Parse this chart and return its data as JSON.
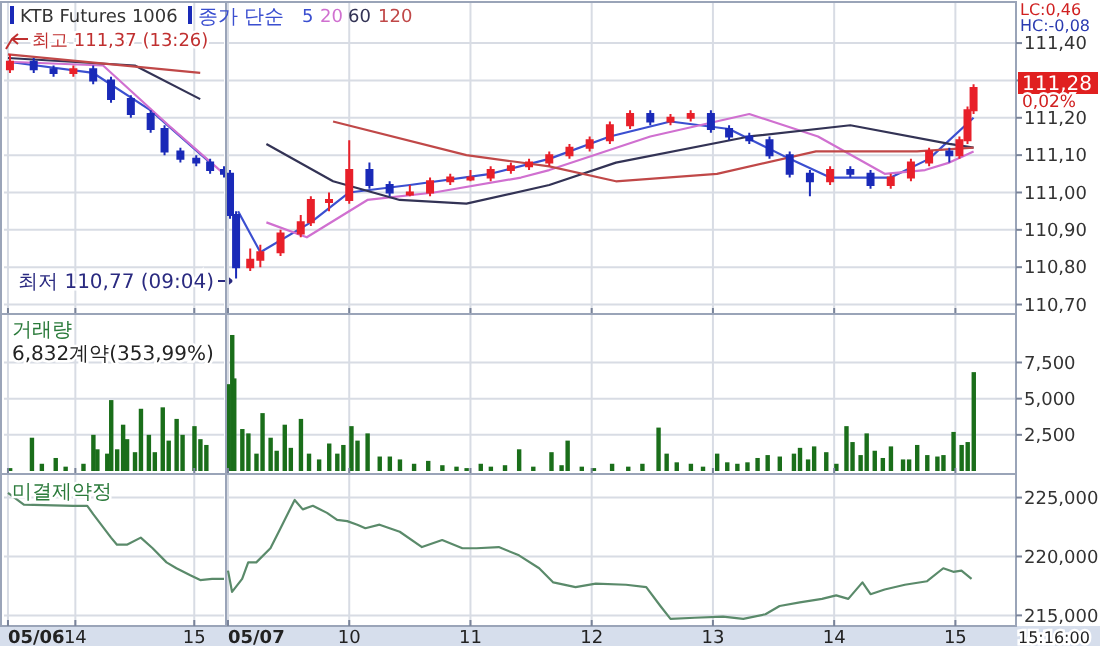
{
  "chart_data": [
    {
      "type": "candlestick",
      "title": "KTB Futures 1006",
      "grid": true,
      "tick_labels": false,
      "xlim": [
        "--05-06T13:24",
        "--05-06T15:15"
      ],
      "xticks": [
        {
          "value": "--05-06T13:26",
          "label": null
        },
        {
          "value": "--05-06T14:00",
          "label": null
        },
        {
          "value": "--05-06T15:00",
          "label": null
        }
      ],
      "ylim": [
        110.68,
        111.51
      ],
      "yticks": [
        110.7,
        110.8,
        110.9,
        111,
        111.1,
        111.2,
        111.3,
        111.4
      ],
      "x": [
        "--05-06T13:27",
        "--05-06T13:39",
        "--05-06T13:49",
        "--05-06T13:59",
        "--05-06T14:09",
        "--05-06T14:18",
        "--05-06T14:28",
        "--05-06T14:38",
        "--05-06T14:45",
        "--05-06T14:53",
        "--05-06T15:01",
        "--05-06T15:08",
        "--05-06T15:15"
      ],
      "ohlc": [
        [
          111.33,
          111.37,
          111.32,
          111.35
        ],
        [
          111.35,
          111.36,
          111.32,
          111.33
        ],
        [
          111.33,
          111.34,
          111.31,
          111.32
        ],
        [
          111.32,
          111.34,
          111.31,
          111.33
        ],
        [
          111.33,
          111.34,
          111.29,
          111.3
        ],
        [
          111.3,
          111.31,
          111.24,
          111.25
        ],
        [
          111.25,
          111.26,
          111.2,
          111.21
        ],
        [
          111.21,
          111.22,
          111.16,
          111.17
        ],
        [
          111.17,
          111.18,
          111.1,
          111.11
        ],
        [
          111.11,
          111.12,
          111.08,
          111.09
        ],
        [
          111.09,
          111.1,
          111.07,
          111.08
        ],
        [
          111.08,
          111.09,
          111.05,
          111.06
        ],
        [
          111.06,
          111.07,
          111.04,
          111.05
        ]
      ],
      "series": [
        {
          "type": "line",
          "color": "#3b4fd0",
          "x": [
            "--05-06T13:26",
            "--05-06T14:09",
            "--05-06T14:38",
            "--05-06T15:08"
          ],
          "values": [
            111.35,
            111.32,
            111.22,
            111.08
          ]
        },
        {
          "type": "line",
          "color": "#d070d0",
          "x": [
            "--05-06T13:26",
            "--05-06T14:14",
            "--05-06T14:47",
            "--05-06T15:15"
          ],
          "values": [
            111.35,
            111.34,
            111.18,
            111.05
          ]
        },
        {
          "type": "line",
          "color": "#333355",
          "x": [
            "--05-06T13:26",
            "--05-06T14:30",
            "--05-06T15:03"
          ],
          "values": [
            111.36,
            111.34,
            111.25
          ]
        },
        {
          "type": "line",
          "color": "#c04848",
          "x": [
            "--05-06T13:26",
            "--05-06T15:03"
          ],
          "values": [
            111.37,
            111.32
          ]
        }
      ],
      "annotations": [
        "최고 111,37 (13:26)",
        "최저 110,77 (09:04)"
      ]
    },
    {
      "type": "candlestick",
      "legend_title": "종가 단순",
      "legend": "top left",
      "grid": true,
      "tick_labels": "y",
      "xlim": [
        "--05-07T09:00",
        "--05-07T15:30"
      ],
      "xticks": [
        {
          "value": "--05-07T09:00",
          "label": null
        },
        {
          "value": "--05-07T10:00",
          "label": null
        },
        {
          "value": "--05-07T11:00",
          "label": null
        },
        {
          "value": "--05-07T12:00",
          "label": null
        },
        {
          "value": "--05-07T13:00",
          "label": null
        },
        {
          "value": "--05-07T14:00",
          "label": null
        },
        {
          "value": "--05-07T15:00",
          "label": null
        }
      ],
      "ylim": [
        110.68,
        111.51
      ],
      "yticks": [
        {
          "value": 110.7,
          "label": "110,70"
        },
        {
          "value": 110.8,
          "label": "110,80"
        },
        {
          "value": 110.9,
          "label": "110,90"
        },
        {
          "value": 111,
          "label": "111,00"
        },
        {
          "value": 111.1,
          "label": "111,10"
        },
        {
          "value": 111.2,
          "label": "111,20"
        },
        {
          "value": 111.3,
          "label": null
        },
        {
          "value": 111.4,
          "label": "111,40"
        }
      ],
      "x": [
        "--05-07T09:01",
        "--05-07T09:04",
        "--05-07T09:11",
        "--05-07T09:16",
        "--05-07T09:26",
        "--05-07T09:36",
        "--05-07T09:41",
        "--05-07T09:50",
        "--05-07T10:00",
        "--05-07T10:10",
        "--05-07T10:20",
        "--05-07T10:30",
        "--05-07T10:40",
        "--05-07T10:50",
        "--05-07T11:00",
        "--05-07T11:10",
        "--05-07T11:20",
        "--05-07T11:29",
        "--05-07T11:39",
        "--05-07T11:49",
        "--05-07T11:59",
        "--05-07T12:09",
        "--05-07T12:19",
        "--05-07T12:29",
        "--05-07T12:39",
        "--05-07T12:49",
        "--05-07T12:59",
        "--05-07T13:08",
        "--05-07T13:18",
        "--05-07T13:28",
        "--05-07T13:38",
        "--05-07T13:48",
        "--05-07T13:58",
        "--05-07T14:08",
        "--05-07T14:18",
        "--05-07T14:28",
        "--05-07T14:38",
        "--05-07T14:47",
        "--05-07T14:57",
        "--05-07T15:02",
        "--05-07T15:06",
        "--05-07T15:09"
      ],
      "ohlc": [
        [
          111.05,
          111.06,
          110.93,
          110.94
        ],
        [
          110.94,
          110.95,
          110.77,
          110.8
        ],
        [
          110.8,
          110.85,
          110.79,
          110.82
        ],
        [
          110.82,
          110.86,
          110.8,
          110.84
        ],
        [
          110.84,
          110.9,
          110.83,
          110.89
        ],
        [
          110.89,
          110.94,
          110.88,
          110.92
        ],
        [
          110.92,
          110.99,
          110.91,
          110.98
        ],
        [
          110.98,
          111.0,
          110.95,
          110.98
        ],
        [
          110.98,
          111.14,
          110.97,
          111.06
        ],
        [
          111.06,
          111.08,
          111.01,
          111.02
        ],
        [
          111.02,
          111.03,
          110.99,
          111.0
        ],
        [
          111.0,
          111.02,
          110.99,
          111.0
        ],
        [
          111.0,
          111.04,
          110.99,
          111.03
        ],
        [
          111.03,
          111.05,
          111.02,
          111.04
        ],
        [
          111.04,
          111.06,
          111.03,
          111.04
        ],
        [
          111.04,
          111.07,
          111.03,
          111.06
        ],
        [
          111.06,
          111.08,
          111.05,
          111.07
        ],
        [
          111.07,
          111.09,
          111.06,
          111.08
        ],
        [
          111.08,
          111.11,
          111.07,
          111.1
        ],
        [
          111.1,
          111.13,
          111.09,
          111.12
        ],
        [
          111.12,
          111.15,
          111.11,
          111.14
        ],
        [
          111.14,
          111.19,
          111.13,
          111.18
        ],
        [
          111.18,
          111.22,
          111.17,
          111.21
        ],
        [
          111.21,
          111.22,
          111.18,
          111.19
        ],
        [
          111.19,
          111.21,
          111.18,
          111.2
        ],
        [
          111.2,
          111.22,
          111.19,
          111.21
        ],
        [
          111.21,
          111.22,
          111.16,
          111.17
        ],
        [
          111.17,
          111.18,
          111.14,
          111.15
        ],
        [
          111.15,
          111.16,
          111.13,
          111.14
        ],
        [
          111.14,
          111.15,
          111.09,
          111.1
        ],
        [
          111.1,
          111.11,
          111.04,
          111.05
        ],
        [
          111.05,
          111.06,
          110.99,
          111.03
        ],
        [
          111.03,
          111.07,
          111.02,
          111.06
        ],
        [
          111.06,
          111.07,
          111.04,
          111.05
        ],
        [
          111.05,
          111.06,
          111.01,
          111.02
        ],
        [
          111.02,
          111.05,
          111.01,
          111.04
        ],
        [
          111.04,
          111.09,
          111.03,
          111.08
        ],
        [
          111.08,
          111.12,
          111.07,
          111.11
        ],
        [
          111.11,
          111.12,
          111.08,
          111.1
        ],
        [
          111.1,
          111.15,
          111.09,
          111.14
        ],
        [
          111.14,
          111.23,
          111.13,
          111.22
        ],
        [
          111.22,
          111.29,
          111.21,
          111.28
        ]
      ],
      "series": [
        {
          "type": "line",
          "name": "5",
          "color": "#3b4fd0",
          "x": [
            "--05-07T09:05",
            "--05-07T09:16",
            "--05-07T09:41",
            "--05-07T10:00",
            "--05-07T10:30",
            "--05-07T11:10",
            "--05-07T11:39",
            "--05-07T12:09",
            "--05-07T12:39",
            "--05-07T13:08",
            "--05-07T13:38",
            "--05-07T13:58",
            "--05-07T14:28",
            "--05-07T14:47",
            "--05-07T15:09"
          ],
          "values": [
            110.95,
            110.84,
            110.92,
            111.0,
            111.02,
            111.05,
            111.09,
            111.15,
            111.19,
            111.17,
            111.09,
            111.04,
            111.04,
            111.09,
            111.2
          ]
        },
        {
          "type": "line",
          "name": "20",
          "color": "#d070d0",
          "x": [
            "--05-07T09:19",
            "--05-07T09:39",
            "--05-07T10:09",
            "--05-07T10:42",
            "--05-07T11:25",
            "--05-07T11:39",
            "--05-07T12:29",
            "--05-07T13:18",
            "--05-07T13:52",
            "--05-07T14:25",
            "--05-07T14:45",
            "--05-07T14:57",
            "--05-07T15:09"
          ],
          "values": [
            110.92,
            110.88,
            110.98,
            111.0,
            111.04,
            111.06,
            111.15,
            111.21,
            111.15,
            111.05,
            111.06,
            111.08,
            111.11
          ]
        },
        {
          "type": "line",
          "name": "60",
          "color": "#333355",
          "x": [
            "--05-07T09:19",
            "--05-07T09:52",
            "--05-07T10:25",
            "--05-07T10:58",
            "--05-07T11:39",
            "--05-07T12:12",
            "--05-07T13:18",
            "--05-07T14:08",
            "--05-07T14:57",
            "--05-07T15:09"
          ],
          "values": [
            111.13,
            111.03,
            110.98,
            110.97,
            111.02,
            111.08,
            111.15,
            111.18,
            111.13,
            111.12
          ]
        },
        {
          "type": "line",
          "name": "120",
          "color": "#c04848",
          "x": [
            "--05-07T09:52",
            "--05-07T10:58",
            "--05-07T11:39",
            "--05-07T12:12",
            "--05-07T13:02",
            "--05-07T13:51",
            "--05-07T14:41",
            "--05-07T15:09"
          ],
          "values": [
            111.19,
            111.1,
            111.07,
            111.03,
            111.05,
            111.11,
            111.11,
            111.12
          ]
        }
      ],
      "annotations": [
        "LC:0,46",
        "HC:-0,08",
        "111,28",
        "0,02%"
      ]
    },
    {
      "type": "bar",
      "grid": true,
      "tick_labels": false,
      "color": "#1a6e1a",
      "xlim": [
        "--05-06T13:24",
        "--05-06T15:15"
      ],
      "xticks": [
        {
          "value": "--05-06T13:26",
          "label": null
        },
        {
          "value": "--05-06T14:00",
          "label": null
        },
        {
          "value": "--05-06T15:00",
          "label": null
        }
      ],
      "ylim": [
        0,
        10850
      ],
      "yticks": [
        2500,
        5000,
        7500
      ],
      "x": [
        "--05-06T13:27",
        "--05-06T13:38",
        "--05-06T13:43",
        "--05-06T13:50",
        "--05-06T13:55",
        "--05-06T14:04",
        "--05-06T14:09",
        "--05-06T14:11",
        "--05-06T14:16",
        "--05-06T14:18",
        "--05-06T14:21",
        "--05-06T14:24",
        "--05-06T14:26",
        "--05-06T14:30",
        "--05-06T14:33",
        "--05-06T14:37",
        "--05-06T14:40",
        "--05-06T14:44",
        "--05-06T14:47",
        "--05-06T14:51",
        "--05-06T14:54",
        "--05-06T15:00",
        "--05-06T15:03",
        "--05-06T15:06"
      ],
      "values": [
        200,
        2300,
        500,
        900,
        300,
        500,
        2500,
        1500,
        1200,
        4900,
        1500,
        3200,
        2200,
        1300,
        4300,
        2500,
        1300,
        4400,
        2100,
        3600,
        2500,
        3100,
        2200,
        1800
      ],
      "annotations": [
        "거래량",
        "6,832계약(353,99%)"
      ]
    },
    {
      "type": "bar",
      "grid": true,
      "tick_labels": "y",
      "color": "#1a6e1a",
      "xlim": [
        "--05-07T09:00",
        "--05-07T15:30"
      ],
      "xticks": [
        {
          "value": "--05-07T09:00",
          "label": null
        },
        {
          "value": "--05-07T10:00",
          "label": null
        },
        {
          "value": "--05-07T11:00",
          "label": null
        },
        {
          "value": "--05-07T12:00",
          "label": null
        },
        {
          "value": "--05-07T13:00",
          "label": null
        },
        {
          "value": "--05-07T14:00",
          "label": null
        },
        {
          "value": "--05-07T15:00",
          "label": null
        }
      ],
      "ylim": [
        0,
        10850
      ],
      "yticks": [
        {
          "value": 2500,
          "label": "2,500"
        },
        {
          "value": 5000,
          "label": "5,000"
        },
        {
          "value": 7500,
          "label": "7,500"
        }
      ],
      "x": [
        "--05-07T09:00",
        "--05-07T09:02",
        "--05-07T09:03",
        "--05-07T09:07",
        "--05-07T09:10",
        "--05-07T09:14",
        "--05-07T09:17",
        "--05-07T09:21",
        "--05-07T09:24",
        "--05-07T09:28",
        "--05-07T09:31",
        "--05-07T09:36",
        "--05-07T09:40",
        "--05-07T09:45",
        "--05-07T09:50",
        "--05-07T09:54",
        "--05-07T09:57",
        "--05-07T10:01",
        "--05-07T10:04",
        "--05-07T10:09",
        "--05-07T10:15",
        "--05-07T10:20",
        "--05-07T10:25",
        "--05-07T10:32",
        "--05-07T10:39",
        "--05-07T10:46",
        "--05-07T10:53",
        "--05-07T10:58",
        "--05-07T11:05",
        "--05-07T11:10",
        "--05-07T11:17",
        "--05-07T11:24",
        "--05-07T11:31",
        "--05-07T11:40",
        "--05-07T11:45",
        "--05-07T11:48",
        "--05-07T11:55",
        "--05-07T12:01",
        "--05-07T12:10",
        "--05-07T12:18",
        "--05-07T12:25",
        "--05-07T12:33",
        "--05-07T12:37",
        "--05-07T12:42",
        "--05-07T12:49",
        "--05-07T12:55",
        "--05-07T13:02",
        "--05-07T13:07",
        "--05-07T13:12",
        "--05-07T13:17",
        "--05-07T13:22",
        "--05-07T13:27",
        "--05-07T13:33",
        "--05-07T13:40",
        "--05-07T13:43",
        "--05-07T13:47",
        "--05-07T13:50",
        "--05-07T13:56",
        "--05-07T14:01",
        "--05-07T14:06",
        "--05-07T14:09",
        "--05-07T14:13",
        "--05-07T14:16",
        "--05-07T14:20",
        "--05-07T14:24",
        "--05-07T14:28",
        "--05-07T14:34",
        "--05-07T14:37",
        "--05-07T14:41",
        "--05-07T14:46",
        "--05-07T14:51",
        "--05-07T14:54",
        "--05-07T14:59",
        "--05-07T15:03",
        "--05-07T15:06",
        "--05-07T15:09"
      ],
      "values": [
        6000,
        9400,
        6400,
        2900,
        2600,
        1200,
        4000,
        2300,
        1400,
        3200,
        1600,
        3600,
        1200,
        800,
        1900,
        1200,
        1800,
        3100,
        2100,
        2600,
        1000,
        1000,
        800,
        500,
        700,
        400,
        300,
        200,
        500,
        300,
        400,
        1500,
        300,
        1300,
        400,
        2100,
        300,
        200,
        500,
        300,
        500,
        3000,
        1200,
        600,
        500,
        300,
        1200,
        600,
        500,
        600,
        900,
        1100,
        1000,
        1200,
        1600,
        800,
        1700,
        1300,
        500,
        3100,
        2000,
        1100,
        2600,
        1400,
        900,
        1700,
        800,
        800,
        1800,
        1100,
        1000,
        1100,
        2700,
        1800,
        2000,
        6832
      ]
    },
    {
      "type": "line",
      "grid": true,
      "tick_labels": "x",
      "color": "#5a8a6a",
      "xlim": [
        "--05-06T13:24",
        "--05-06T15:15"
      ],
      "xticks": [
        {
          "value": "--05-06T13:26",
          "label": "05/06"
        },
        {
          "value": "--05-06T14:00",
          "label": "14"
        },
        {
          "value": "--05-06T15:00",
          "label": "15"
        }
      ],
      "ylim": [
        214100,
        227000
      ],
      "yticks": [
        215000,
        220000,
        225000
      ],
      "x": [
        "--05-06T13:26",
        "--05-06T13:34",
        "--05-06T13:59",
        "--05-06T14:06",
        "--05-06T14:09",
        "--05-06T14:18",
        "--05-06T14:21",
        "--05-06T14:26",
        "--05-06T14:33",
        "--05-06T14:39",
        "--05-06T14:46",
        "--05-06T14:51",
        "--05-06T14:58",
        "--05-06T15:03",
        "--05-06T15:09",
        "--05-06T15:15"
      ],
      "values": [
        225400,
        224400,
        224300,
        224300,
        223600,
        221600,
        221000,
        221000,
        221600,
        220700,
        219500,
        219000,
        218400,
        218000,
        218100,
        218100
      ],
      "annotations": [
        "미결제약정"
      ]
    },
    {
      "type": "line",
      "grid": true,
      "color": "#5a8a6a",
      "xlim": [
        "--05-07T09:00",
        "--05-07T15:30"
      ],
      "xticks": [
        {
          "value": "--05-07T09:00",
          "label": "05/07"
        },
        {
          "value": "--05-07T10:00",
          "label": "10"
        },
        {
          "value": "--05-07T11:00",
          "label": "11"
        },
        {
          "value": "--05-07T12:00",
          "label": "12"
        },
        {
          "value": "--05-07T13:00",
          "label": "13"
        },
        {
          "value": "--05-07T14:00",
          "label": "14"
        },
        {
          "value": "--05-07T15:00",
          "label": "15"
        }
      ],
      "ylim": [
        214100,
        227000
      ],
      "yticks": [
        {
          "value": 215000,
          "label": "215,000"
        },
        {
          "value": 220000,
          "label": "220,000"
        },
        {
          "value": 225000,
          "label": "225,000"
        }
      ],
      "x": [
        "--05-07T09:00",
        "--05-07T09:02",
        "--05-07T09:07",
        "--05-07T09:10",
        "--05-07T09:14",
        "--05-07T09:21",
        "--05-07T09:26",
        "--05-07T09:33",
        "--05-07T09:37",
        "--05-07T09:42",
        "--05-07T09:49",
        "--05-07T09:54",
        "--05-07T09:59",
        "--05-07T10:04",
        "--05-07T10:08",
        "--05-07T10:15",
        "--05-07T10:25",
        "--05-07T10:36",
        "--05-07T10:46",
        "--05-07T10:56",
        "--05-07T11:03",
        "--05-07T11:14",
        "--05-07T11:24",
        "--05-07T11:34",
        "--05-07T11:41",
        "--05-07T11:52",
        "--05-07T12:02",
        "--05-07T12:17",
        "--05-07T12:27",
        "--05-07T12:34",
        "--05-07T12:39",
        "--05-07T12:51",
        "--05-07T13:05",
        "--05-07T13:15",
        "--05-07T13:26",
        "--05-07T13:33",
        "--05-07T13:43",
        "--05-07T13:54",
        "--05-07T14:01",
        "--05-07T14:07",
        "--05-07T14:14",
        "--05-07T14:18",
        "--05-07T14:25",
        "--05-07T14:35",
        "--05-07T14:46",
        "--05-07T14:54",
        "--05-07T14:59",
        "--05-07T15:03",
        "--05-07T15:08"
      ],
      "values": [
        218800,
        217000,
        218100,
        219500,
        219500,
        220700,
        222400,
        224800,
        224000,
        224300,
        223700,
        223100,
        223000,
        222700,
        222400,
        222700,
        222100,
        220800,
        221400,
        220700,
        220700,
        220800,
        220100,
        219000,
        217800,
        217400,
        217700,
        217600,
        217400,
        215800,
        214700,
        214800,
        214900,
        214700,
        215100,
        215800,
        216100,
        216400,
        216700,
        216400,
        217800,
        216800,
        217200,
        217600,
        217900,
        219000,
        218700,
        218800,
        218100
      ],
      "annotations": [
        "15:16:00"
      ]
    }
  ]
}
